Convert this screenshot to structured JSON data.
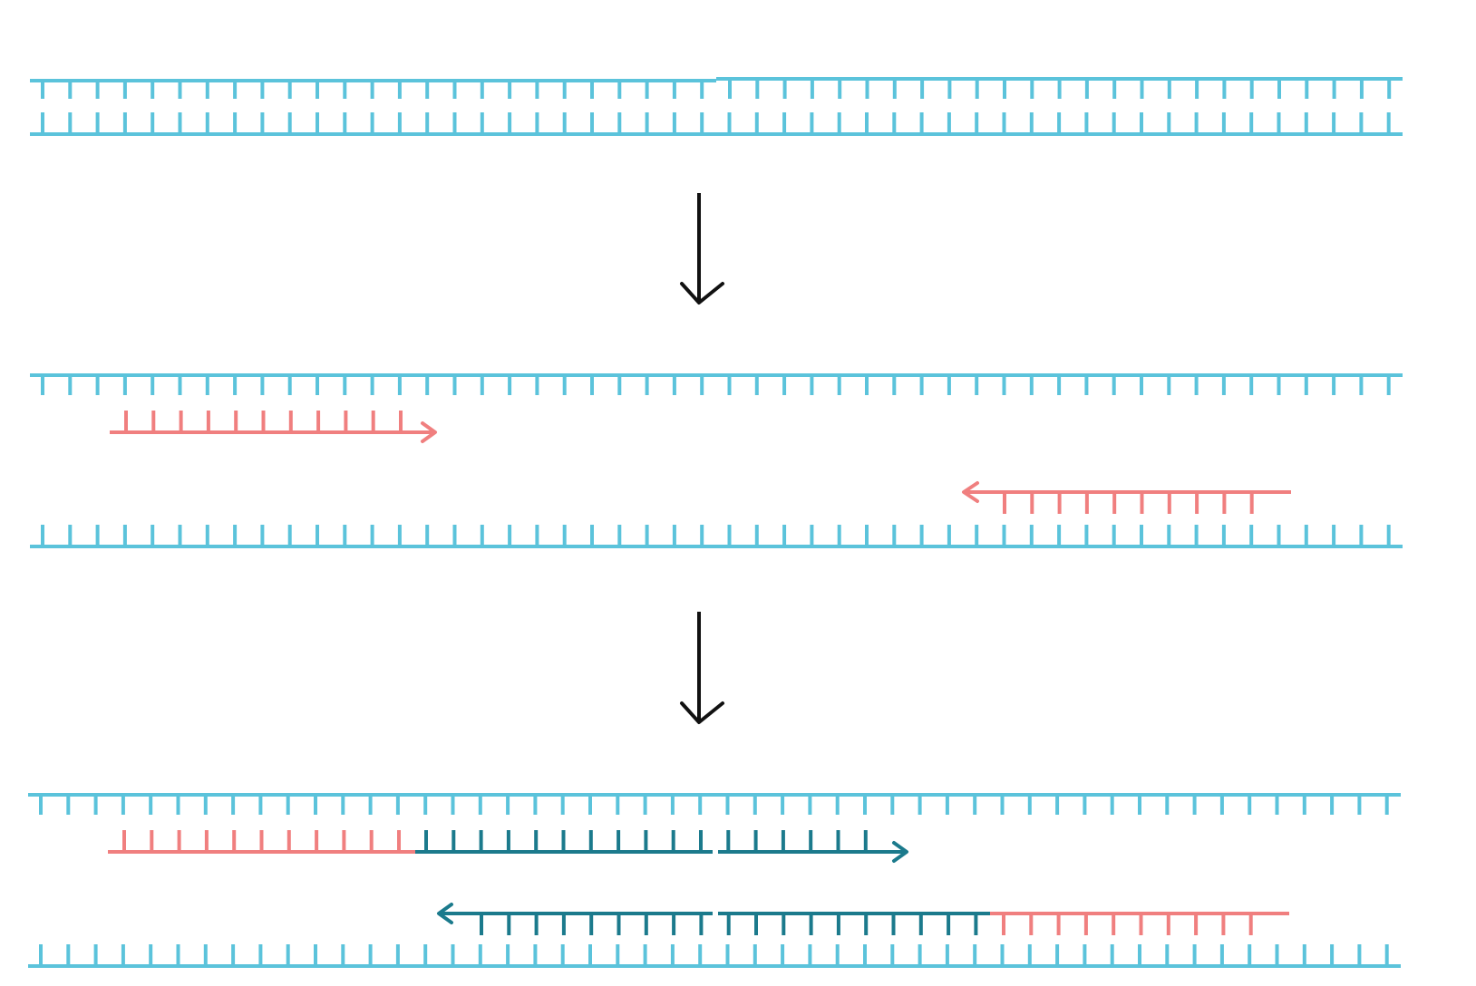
{
  "colors": {
    "template_strand": "#5BC3DB",
    "primer": "#F07F7F",
    "new_strand": "#1B7A8C",
    "step_arrow": "#111111",
    "background": "#FFFFFF"
  },
  "diagram": {
    "stages": [
      {
        "id": "stage-1",
        "description_icon": "double-stranded-dna"
      },
      {
        "id": "stage-2",
        "description_icon": "denatured-strands-with-primers"
      },
      {
        "id": "stage-3",
        "description_icon": "primer-extension"
      }
    ],
    "step_arrows": [
      {
        "id": "step-arrow-1",
        "icon": "down-arrow-icon"
      },
      {
        "id": "step-arrow-2",
        "icon": "down-arrow-icon"
      }
    ]
  }
}
